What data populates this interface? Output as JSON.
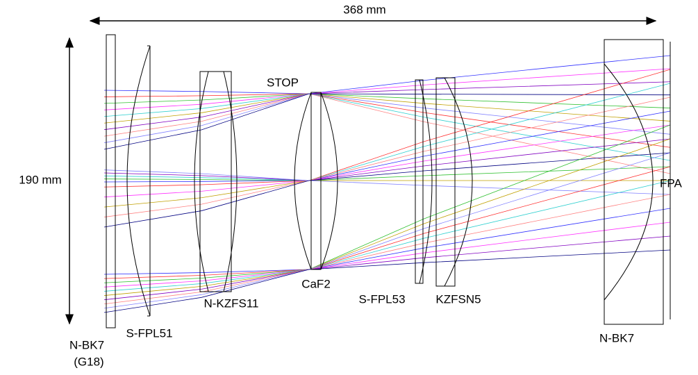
{
  "dimensions": {
    "length": "368 mm",
    "height": "190 mm"
  },
  "markers": {
    "stop": "STOP",
    "focal_plane": "FPA"
  },
  "elements": [
    {
      "label": "N-BK7",
      "sublabel": "(G18)"
    },
    {
      "label": "S-FPL51"
    },
    {
      "label": "N-KZFS11"
    },
    {
      "label": "CaF2"
    },
    {
      "label": "S-FPL53"
    },
    {
      "label": "KZFSN5"
    },
    {
      "label": "N-BK7"
    }
  ]
}
